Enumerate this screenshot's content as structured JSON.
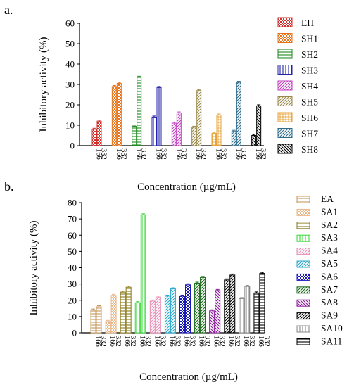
{
  "chart_data": [
    {
      "type": "bar",
      "panel_label": "a.",
      "ylabel": "Inhibitory activity (%)",
      "xlabel": "Concentration (µg/mL)",
      "ylim": [
        0,
        60
      ],
      "yticks": [
        0,
        10,
        20,
        30,
        40,
        50,
        60
      ],
      "categories": [
        "166",
        "332"
      ],
      "legend_position": "right",
      "series": [
        {
          "name": "EH",
          "values": [
            8,
            12
          ],
          "color": "#d0312d",
          "pattern": "check"
        },
        {
          "name": "SH1",
          "values": [
            29,
            30.5
          ],
          "color": "#e8731a",
          "pattern": "check"
        },
        {
          "name": "SH2",
          "values": [
            9.5,
            33.5
          ],
          "color": "#1f8a1f",
          "pattern": "hlines"
        },
        {
          "name": "SH3",
          "values": [
            14,
            28.5
          ],
          "color": "#2323a8",
          "pattern": "vlines"
        },
        {
          "name": "SH4",
          "values": [
            11,
            16
          ],
          "color": "#c040c0",
          "pattern": "diag"
        },
        {
          "name": "SH5",
          "values": [
            9,
            27
          ],
          "color": "#9a8a4a",
          "pattern": "diag"
        },
        {
          "name": "SH6",
          "values": [
            6,
            15
          ],
          "color": "#e8a33a",
          "pattern": "grid"
        },
        {
          "name": "SH7",
          "values": [
            7,
            31
          ],
          "color": "#2e6c8c",
          "pattern": "diag"
        },
        {
          "name": "SH8",
          "values": [
            5,
            19.5
          ],
          "color": "#000000",
          "pattern": "diagrev"
        }
      ]
    },
    {
      "type": "bar",
      "panel_label": "b.",
      "ylabel": "Inhibitory activity (%)",
      "xlabel": "Concentration (µg/mL)",
      "ylim": [
        0,
        80
      ],
      "yticks": [
        0,
        10,
        20,
        30,
        40,
        50,
        60,
        70,
        80
      ],
      "categories": [
        "166",
        "332"
      ],
      "legend_position": "right",
      "series": [
        {
          "name": "EA",
          "values": [
            14,
            16
          ],
          "color": "#c8965a",
          "pattern": "hlines"
        },
        {
          "name": "SA1",
          "values": [
            7,
            23
          ],
          "color": "#e8b88a",
          "pattern": "check"
        },
        {
          "name": "SA2",
          "values": [
            25,
            28
          ],
          "color": "#8a7a1a",
          "pattern": "hlines"
        },
        {
          "name": "SA3",
          "values": [
            18.5,
            72.5
          ],
          "color": "#3ad83a",
          "pattern": "vlines"
        },
        {
          "name": "SA4",
          "values": [
            19.5,
            22
          ],
          "color": "#e890b8",
          "pattern": "diag"
        },
        {
          "name": "SA5",
          "values": [
            22.5,
            27
          ],
          "color": "#2aa8c8",
          "pattern": "diag"
        },
        {
          "name": "SA6",
          "values": [
            22.5,
            29.5
          ],
          "color": "#1a1ab8",
          "pattern": "check"
        },
        {
          "name": "SA7",
          "values": [
            30.5,
            34
          ],
          "color": "#1a6a1a",
          "pattern": "diag"
        },
        {
          "name": "SA8",
          "values": [
            13.5,
            26
          ],
          "color": "#8a1a9a",
          "pattern": "diagrev"
        },
        {
          "name": "SA9",
          "values": [
            32.5,
            35.5
          ],
          "color": "#000000",
          "pattern": "diag"
        },
        {
          "name": "SA10",
          "values": [
            21,
            28.5
          ],
          "color": "#888888",
          "pattern": "vlines"
        },
        {
          "name": "SA11",
          "values": [
            24.5,
            36.5
          ],
          "color": "#000000",
          "pattern": "hlines"
        }
      ]
    }
  ]
}
